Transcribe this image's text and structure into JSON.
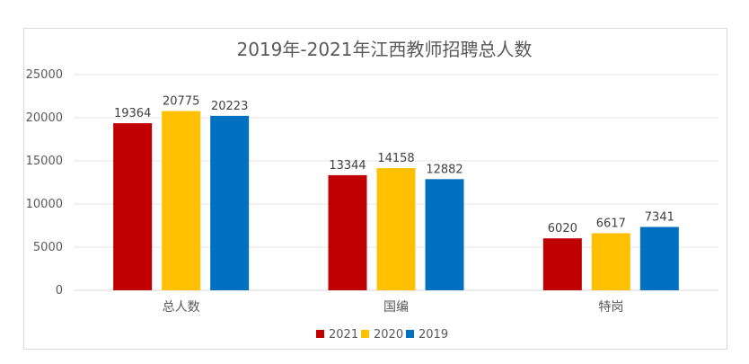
{
  "chart_data": {
    "type": "bar",
    "title": "2019年-2021年江西教师招聘总人数",
    "categories": [
      "总人数",
      "国编",
      "特岗"
    ],
    "series": [
      {
        "name": "2021",
        "color": "#C00000",
        "values": [
          19364,
          13344,
          6020
        ]
      },
      {
        "name": "2020",
        "color": "#FFC000",
        "values": [
          20775,
          14158,
          6617
        ]
      },
      {
        "name": "2019",
        "color": "#0070C0",
        "values": [
          20223,
          12882,
          7341
        ]
      }
    ],
    "ylim": [
      0,
      25000
    ],
    "yticks": [
      0,
      5000,
      10000,
      15000,
      20000,
      25000
    ],
    "xlabel": "",
    "ylabel": "",
    "grid": true,
    "legend_position": "bottom",
    "data_labels": true
  }
}
